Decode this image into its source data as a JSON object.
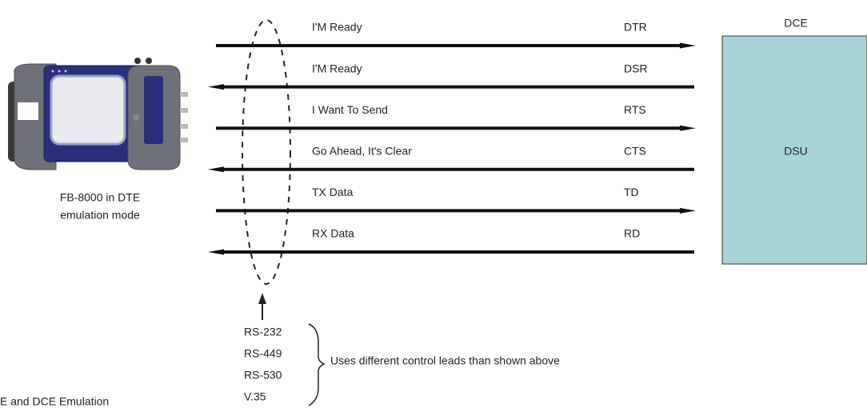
{
  "device": {
    "caption": [
      "FB-8000 in DTE",
      "emulation mode"
    ]
  },
  "signals": [
    {
      "label": "I'M Ready",
      "code": "DTR",
      "direction": "right"
    },
    {
      "label": "I'M Ready",
      "code": "DSR",
      "direction": "left"
    },
    {
      "label": "I Want To Send",
      "code": "RTS",
      "direction": "right"
    },
    {
      "label": "Go Ahead, It's Clear",
      "code": "CTS",
      "direction": "left"
    },
    {
      "label": "TX Data",
      "code": "TD",
      "direction": "right"
    },
    {
      "label": "RX Data",
      "code": "RD",
      "direction": "left"
    }
  ],
  "dce": {
    "title": "DCE",
    "box_label": "DSU"
  },
  "interfaces": {
    "items": [
      "RS-232",
      "RS-449",
      "RS-530",
      "V.35"
    ],
    "note": "Uses different control leads than shown above"
  },
  "footer": "E and DCE Emulation"
}
